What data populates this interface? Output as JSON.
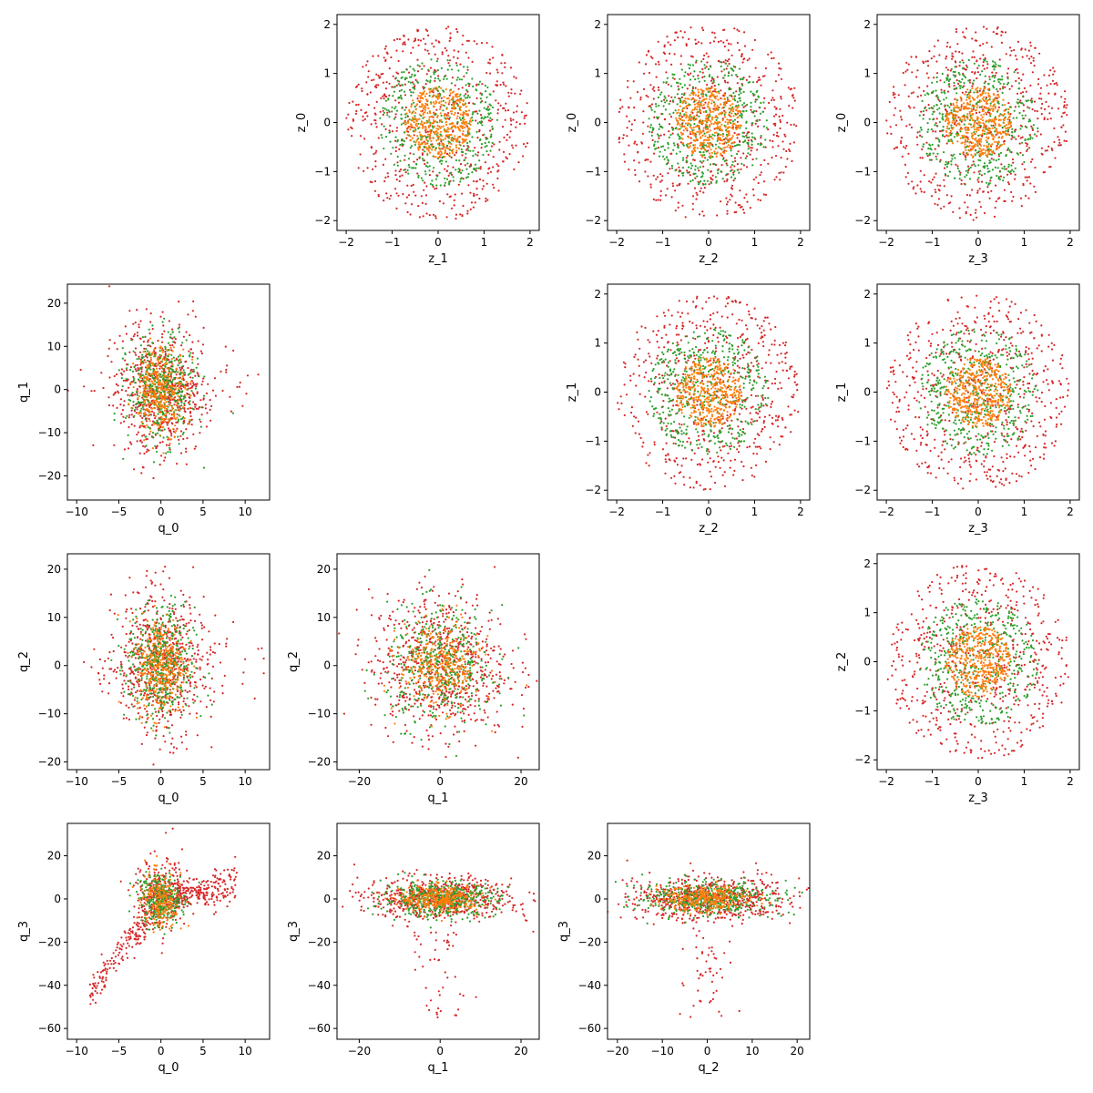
{
  "chart_data": [
    {
      "type": "scatter",
      "row": 0,
      "col": 1,
      "xlabel": "z_1",
      "ylabel": "z_0",
      "xlim": [
        -2.2,
        2.2
      ],
      "ylim": [
        -2.2,
        2.2
      ],
      "xticks": [
        -2,
        -1,
        0,
        1,
        2
      ],
      "yticks": [
        -2,
        -1,
        0,
        1,
        2
      ],
      "pattern": "rings"
    },
    {
      "type": "scatter",
      "row": 0,
      "col": 2,
      "xlabel": "z_2",
      "ylabel": "z_0",
      "xlim": [
        -2.2,
        2.2
      ],
      "ylim": [
        -2.2,
        2.2
      ],
      "xticks": [
        -2,
        -1,
        0,
        1,
        2
      ],
      "yticks": [
        -2,
        -1,
        0,
        1,
        2
      ],
      "pattern": "rings"
    },
    {
      "type": "scatter",
      "row": 0,
      "col": 3,
      "xlabel": "z_3",
      "ylabel": "z_0",
      "xlim": [
        -2.2,
        2.2
      ],
      "ylim": [
        -2.2,
        2.2
      ],
      "xticks": [
        -2,
        -1,
        0,
        1,
        2
      ],
      "yticks": [
        -2,
        -1,
        0,
        1,
        2
      ],
      "pattern": "rings"
    },
    {
      "type": "scatter",
      "row": 1,
      "col": 0,
      "xlabel": "q_0",
      "ylabel": "q_1",
      "xlim": [
        -11.1,
        12.9
      ],
      "ylim": [
        -25.6,
        24.4
      ],
      "xticks": [
        -10,
        -5,
        0,
        5,
        10
      ],
      "yticks": [
        -20,
        -10,
        0,
        10,
        20
      ],
      "pattern": "narrow"
    },
    {
      "type": "scatter",
      "row": 1,
      "col": 2,
      "xlabel": "z_2",
      "ylabel": "z_1",
      "xlim": [
        -2.2,
        2.2
      ],
      "ylim": [
        -2.2,
        2.2
      ],
      "xticks": [
        -2,
        -1,
        0,
        1,
        2
      ],
      "yticks": [
        -2,
        -1,
        0,
        1,
        2
      ],
      "pattern": "rings"
    },
    {
      "type": "scatter",
      "row": 1,
      "col": 3,
      "xlabel": "z_3",
      "ylabel": "z_1",
      "xlim": [
        -2.2,
        2.2
      ],
      "ylim": [
        -2.2,
        2.2
      ],
      "xticks": [
        -2,
        -1,
        0,
        1,
        2
      ],
      "yticks": [
        -2,
        -1,
        0,
        1,
        2
      ],
      "pattern": "rings"
    },
    {
      "type": "scatter",
      "row": 2,
      "col": 0,
      "xlabel": "q_0",
      "ylabel": "q_2",
      "xlim": [
        -11.1,
        12.9
      ],
      "ylim": [
        -21.6,
        23.2
      ],
      "xticks": [
        -10,
        -5,
        0,
        5,
        10
      ],
      "yticks": [
        -20,
        -10,
        0,
        10,
        20
      ],
      "pattern": "narrow"
    },
    {
      "type": "scatter",
      "row": 2,
      "col": 1,
      "xlabel": "q_1",
      "ylabel": "q_2",
      "xlim": [
        -25.5,
        24.5
      ],
      "ylim": [
        -21.6,
        23.2
      ],
      "xticks": [
        -20,
        0,
        20
      ],
      "yticks": [
        -20,
        -10,
        0,
        10,
        20
      ],
      "pattern": "blob"
    },
    {
      "type": "scatter",
      "row": 2,
      "col": 3,
      "xlabel": "z_3",
      "ylabel": "z_2",
      "xlim": [
        -2.2,
        2.2
      ],
      "ylim": [
        -2.2,
        2.2
      ],
      "xticks": [
        -2,
        -1,
        0,
        1,
        2
      ],
      "yticks": [
        -2,
        -1,
        0,
        1,
        2
      ],
      "pattern": "rings"
    },
    {
      "type": "scatter",
      "row": 3,
      "col": 0,
      "xlabel": "q_0",
      "ylabel": "q_3",
      "xlim": [
        -11.1,
        12.9
      ],
      "ylim": [
        -65,
        35
      ],
      "xticks": [
        -10,
        -5,
        0,
        5,
        10
      ],
      "yticks": [
        -60,
        -40,
        -20,
        0,
        20
      ],
      "pattern": "arrow"
    },
    {
      "type": "scatter",
      "row": 3,
      "col": 1,
      "xlabel": "q_1",
      "ylabel": "q_3",
      "xlim": [
        -25.5,
        24.5
      ],
      "ylim": [
        -65,
        35
      ],
      "xticks": [
        -20,
        0,
        20
      ],
      "yticks": [
        -60,
        -40,
        -20,
        0,
        20
      ],
      "pattern": "wide_tail"
    },
    {
      "type": "scatter",
      "row": 3,
      "col": 2,
      "xlabel": "q_2",
      "ylabel": "q_3",
      "xlim": [
        -22.2,
        22.8
      ],
      "ylim": [
        -65,
        35
      ],
      "xticks": [
        -20,
        -10,
        0,
        10,
        20
      ],
      "yticks": [
        -60,
        -40,
        -20,
        0,
        20
      ],
      "pattern": "wide_tail"
    }
  ],
  "series_colors": [
    "#d62728",
    "#2ca02c",
    "#ff7f0e"
  ]
}
